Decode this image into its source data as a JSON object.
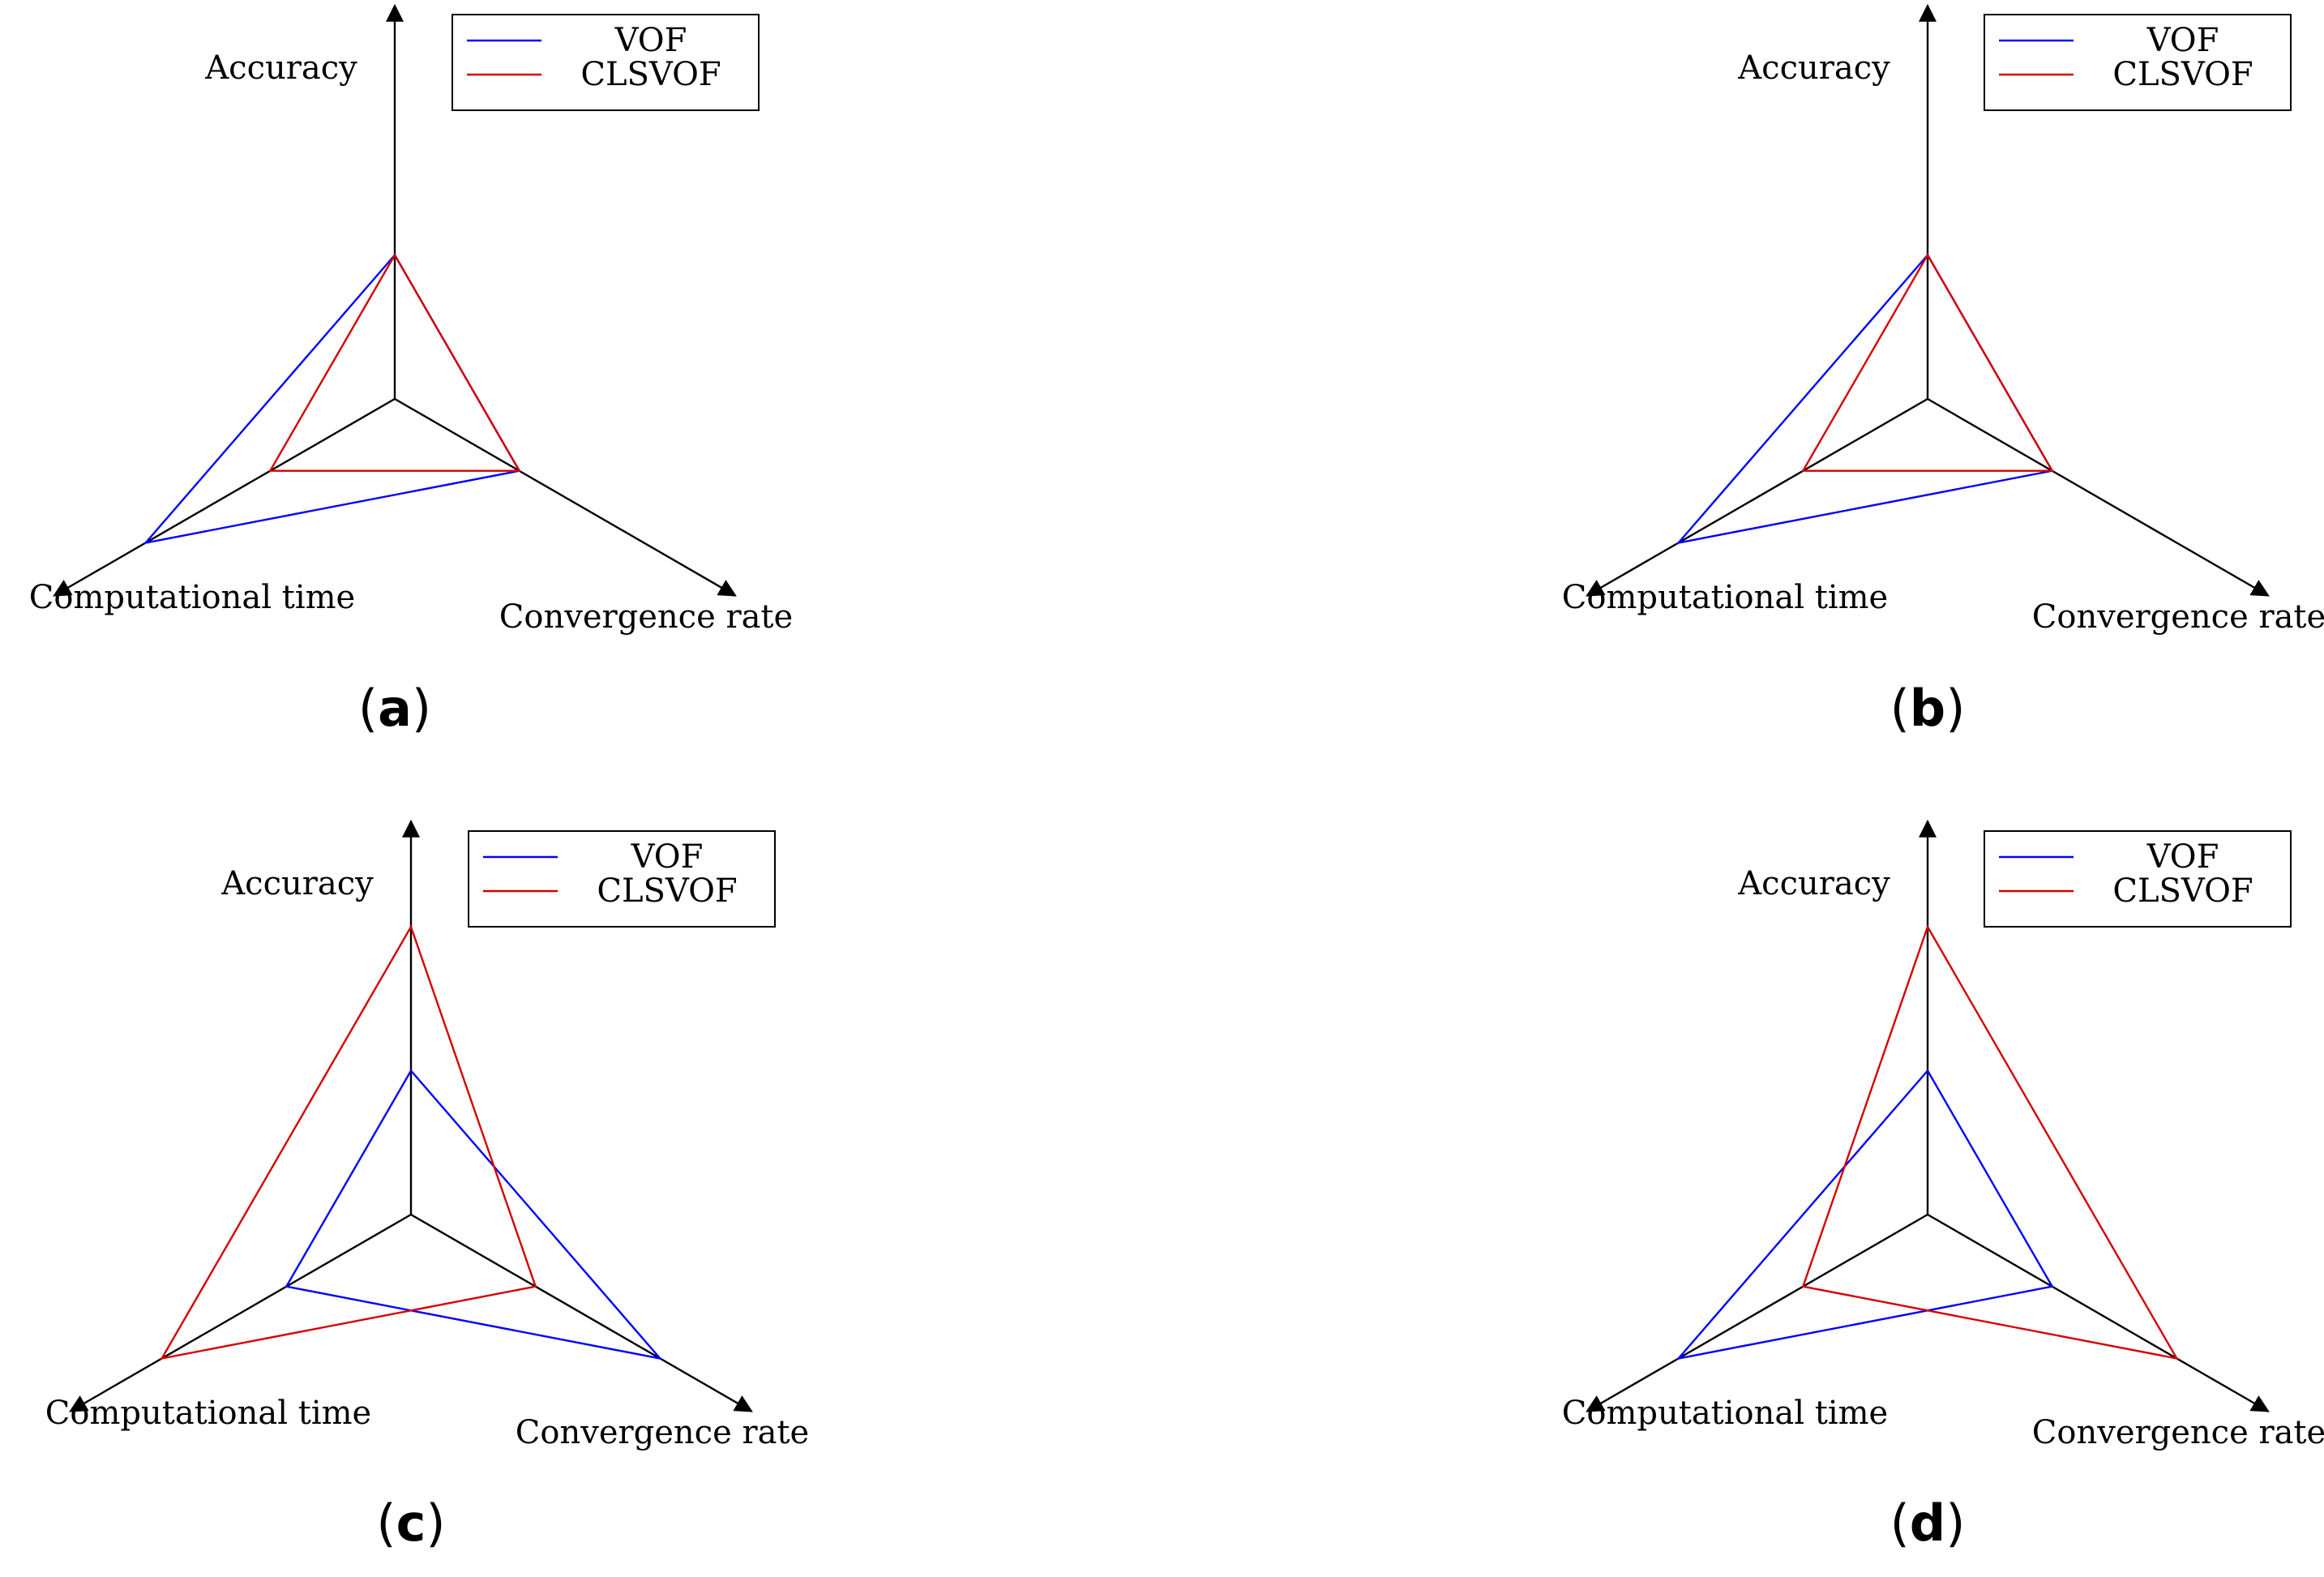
{
  "figure": {
    "description_panels": 4
  },
  "colors": {
    "axis": "#000000",
    "vof": "#0000ff",
    "clsvof": "#d40000"
  },
  "chart_data": [
    {
      "type": "radar",
      "panel_label": "a",
      "axes": [
        "Accuracy",
        "Convergence rate",
        "Computational time"
      ],
      "axis_max": 1.0,
      "legend": [
        "VOF",
        "CLSVOF"
      ],
      "legend_position": "top-right",
      "series": [
        {
          "name": "VOF",
          "values": [
            0.39,
            0.39,
            0.78
          ]
        },
        {
          "name": "CLSVOF",
          "values": [
            0.39,
            0.39,
            0.39
          ]
        }
      ]
    },
    {
      "type": "radar",
      "panel_label": "b",
      "axes": [
        "Accuracy",
        "Convergence rate",
        "Computational time"
      ],
      "axis_max": 1.0,
      "legend": [
        "VOF",
        "CLSVOF"
      ],
      "legend_position": "top-right",
      "series": [
        {
          "name": "VOF",
          "values": [
            0.39,
            0.39,
            0.78
          ]
        },
        {
          "name": "CLSVOF",
          "values": [
            0.39,
            0.39,
            0.39
          ]
        }
      ]
    },
    {
      "type": "radar",
      "panel_label": "c",
      "axes": [
        "Accuracy",
        "Convergence rate",
        "Computational time"
      ],
      "axis_max": 1.0,
      "legend": [
        "VOF",
        "CLSVOF"
      ],
      "legend_position": "top-right",
      "series": [
        {
          "name": "VOF",
          "values": [
            0.39,
            0.78,
            0.39
          ]
        },
        {
          "name": "CLSVOF",
          "values": [
            0.78,
            0.39,
            0.78
          ]
        }
      ]
    },
    {
      "type": "radar",
      "panel_label": "d",
      "axes": [
        "Accuracy",
        "Convergence rate",
        "Computational time"
      ],
      "axis_max": 1.0,
      "legend": [
        "VOF",
        "CLSVOF"
      ],
      "legend_position": "top-right",
      "series": [
        {
          "name": "VOF",
          "values": [
            0.39,
            0.39,
            0.78
          ]
        },
        {
          "name": "CLSVOF",
          "values": [
            0.78,
            0.78,
            0.39
          ]
        }
      ]
    }
  ]
}
